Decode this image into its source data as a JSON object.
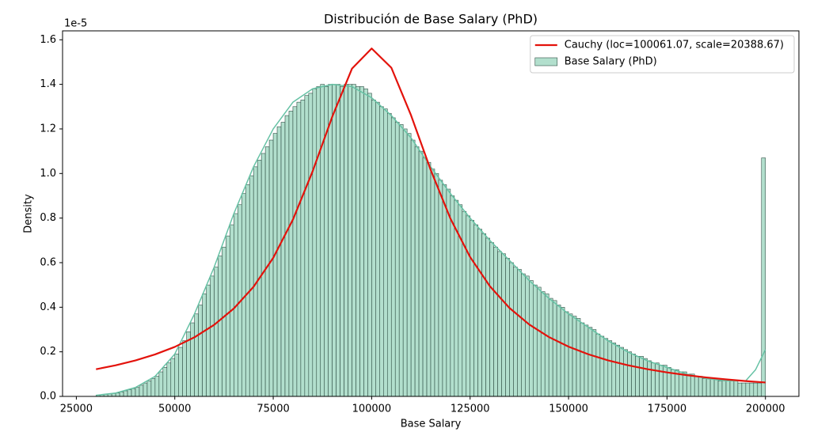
{
  "chart_data": {
    "type": "histogram",
    "title": "Distribución de Base Salary (PhD)",
    "xlabel": "Base Salary",
    "ylabel": "Density",
    "y_offset_label": "1e-5",
    "xlim": [
      21500,
      208500
    ],
    "ylim": [
      0,
      1.64
    ],
    "xticks": [
      25000,
      50000,
      75000,
      100000,
      125000,
      150000,
      175000,
      200000
    ],
    "yticks": [
      {
        "value": 0,
        "label": "0.0"
      },
      0.2,
      0.4,
      0.6,
      0.8,
      {
        "value": 1,
        "label": "1.0"
      },
      1.2,
      1.4,
      1.6
    ],
    "legend": "upper right",
    "name": "Base Salary (PhD)",
    "color": "#b2dfcd",
    "edgecolor": "#2f4f44",
    "bins": [
      30000,
      31000,
      32000,
      33000,
      34000,
      35000,
      36000,
      37000,
      38000,
      39000,
      40000,
      41000,
      42000,
      43000,
      44000,
      45000,
      46000,
      47000,
      48000,
      49000,
      50000,
      51000,
      52000,
      53000,
      54000,
      55000,
      56000,
      57000,
      58000,
      59000,
      60000,
      61000,
      62000,
      63000,
      64000,
      65000,
      66000,
      67000,
      68000,
      69000,
      70000,
      71000,
      72000,
      73000,
      74000,
      75000,
      76000,
      77000,
      78000,
      79000,
      80000,
      81000,
      82000,
      83000,
      84000,
      85000,
      86000,
      87000,
      88000,
      89000,
      90000,
      91000,
      92000,
      93000,
      94000,
      95000,
      96000,
      97000,
      98000,
      99000,
      100000,
      101000,
      102000,
      103000,
      104000,
      105000,
      106000,
      107000,
      108000,
      109000,
      110000,
      111000,
      112000,
      113000,
      114000,
      115000,
      116000,
      117000,
      118000,
      119000,
      120000,
      121000,
      122000,
      123000,
      124000,
      125000,
      126000,
      127000,
      128000,
      129000,
      130000,
      131000,
      132000,
      133000,
      134000,
      135000,
      136000,
      137000,
      138000,
      139000,
      140000,
      141000,
      142000,
      143000,
      144000,
      145000,
      146000,
      147000,
      148000,
      149000,
      150000,
      151000,
      152000,
      153000,
      154000,
      155000,
      156000,
      157000,
      158000,
      159000,
      160000,
      161000,
      162000,
      163000,
      164000,
      165000,
      166000,
      167000,
      168000,
      169000,
      170000,
      171000,
      172000,
      173000,
      174000,
      175000,
      176000,
      177000,
      178000,
      179000,
      180000,
      181000,
      182000,
      183000,
      184000,
      185000,
      186000,
      187000,
      188000,
      189000,
      190000,
      191000,
      192000,
      193000,
      194000,
      195000,
      196000,
      197000,
      198000,
      199000,
      200000
    ],
    "values": [
      0.005,
      0.007,
      0.009,
      0.011,
      0.013,
      0.015,
      0.02,
      0.025,
      0.03,
      0.035,
      0.04,
      0.05,
      0.06,
      0.07,
      0.08,
      0.09,
      0.11,
      0.13,
      0.15,
      0.17,
      0.19,
      0.22,
      0.25,
      0.29,
      0.33,
      0.37,
      0.41,
      0.46,
      0.5,
      0.54,
      0.58,
      0.63,
      0.67,
      0.72,
      0.77,
      0.82,
      0.86,
      0.91,
      0.95,
      0.99,
      1.03,
      1.06,
      1.09,
      1.12,
      1.15,
      1.18,
      1.21,
      1.23,
      1.26,
      1.28,
      1.3,
      1.32,
      1.33,
      1.35,
      1.36,
      1.38,
      1.39,
      1.4,
      1.39,
      1.4,
      1.4,
      1.4,
      1.39,
      1.4,
      1.4,
      1.4,
      1.39,
      1.39,
      1.38,
      1.36,
      1.33,
      1.32,
      1.3,
      1.29,
      1.27,
      1.25,
      1.23,
      1.22,
      1.2,
      1.18,
      1.15,
      1.12,
      1.1,
      1.07,
      1.05,
      1.02,
      1.0,
      0.97,
      0.95,
      0.93,
      0.9,
      0.88,
      0.86,
      0.83,
      0.81,
      0.79,
      0.77,
      0.75,
      0.73,
      0.71,
      0.69,
      0.67,
      0.65,
      0.64,
      0.62,
      0.6,
      0.58,
      0.57,
      0.55,
      0.54,
      0.52,
      0.5,
      0.49,
      0.47,
      0.46,
      0.44,
      0.43,
      0.41,
      0.4,
      0.38,
      0.37,
      0.36,
      0.35,
      0.33,
      0.32,
      0.31,
      0.3,
      0.28,
      0.27,
      0.26,
      0.25,
      0.24,
      0.23,
      0.22,
      0.21,
      0.2,
      0.19,
      0.18,
      0.18,
      0.17,
      0.16,
      0.15,
      0.15,
      0.14,
      0.14,
      0.13,
      0.12,
      0.12,
      0.11,
      0.11,
      0.1,
      0.1,
      0.09,
      0.09,
      0.08,
      0.08,
      0.08,
      0.08,
      0.07,
      0.07,
      0.07,
      0.07,
      0.07,
      0.06,
      0.06,
      0.06,
      0.06,
      0.06,
      0.06,
      1.07
    ],
    "lines": [
      {
        "type": "line",
        "color": "#66c2a5",
        "x": [
          30000,
          35000,
          40000,
          45000,
          50000,
          55000,
          60000,
          65000,
          70000,
          75000,
          80000,
          85000,
          90000,
          95000,
          100000,
          105000,
          110000,
          115000,
          120000,
          125000,
          130000,
          135000,
          140000,
          145000,
          150000,
          155000,
          160000,
          165000,
          170000,
          175000,
          180000,
          185000,
          190000,
          195000,
          197500,
          200000
        ],
        "values": [
          0.005,
          0.015,
          0.04,
          0.09,
          0.19,
          0.37,
          0.58,
          0.82,
          1.03,
          1.2,
          1.32,
          1.38,
          1.4,
          1.39,
          1.34,
          1.26,
          1.16,
          1.03,
          0.91,
          0.8,
          0.7,
          0.61,
          0.52,
          0.44,
          0.37,
          0.31,
          0.25,
          0.2,
          0.16,
          0.13,
          0.1,
          0.08,
          0.07,
          0.07,
          0.12,
          0.21
        ]
      },
      {
        "type": "line",
        "name": "Cauchy (loc=100061.07, scale=20388.67)",
        "color": "#e3120b",
        "x": [
          30000,
          35000,
          40000,
          45000,
          50000,
          55000,
          60000,
          65000,
          70000,
          75000,
          80000,
          85000,
          90000,
          95000,
          100000,
          105000,
          110000,
          115000,
          120000,
          125000,
          130000,
          135000,
          140000,
          145000,
          150000,
          155000,
          160000,
          165000,
          170000,
          175000,
          180000,
          185000,
          190000,
          195000,
          200000
        ],
        "values": [
          0.1219,
          0.1396,
          0.1613,
          0.1883,
          0.2221,
          0.2653,
          0.3211,
          0.3944,
          0.4918,
          0.6217,
          0.7932,
          1.0097,
          1.2553,
          1.4704,
          1.561,
          1.4745,
          1.2612,
          1.0157,
          0.7979,
          0.6254,
          0.4946,
          0.3966,
          0.3227,
          0.2665,
          0.2231,
          0.189,
          0.1619,
          0.1401,
          0.1222,
          0.1076,
          0.0954,
          0.085,
          0.0763,
          0.0688,
          0.0624
        ]
      }
    ]
  }
}
